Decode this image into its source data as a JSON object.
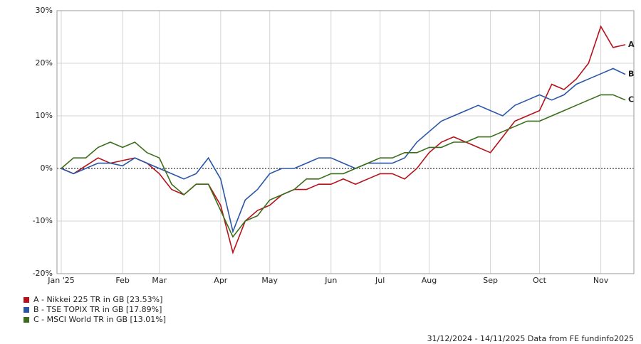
{
  "chart_data": {
    "type": "line",
    "categories": [
      "Jan '25",
      null,
      null,
      null,
      null,
      "Feb",
      null,
      null,
      "Mar",
      null,
      null,
      null,
      null,
      "Apr",
      null,
      null,
      null,
      "May",
      null,
      null,
      null,
      null,
      "Jun",
      null,
      null,
      null,
      "Jul",
      null,
      null,
      null,
      "Aug",
      null,
      null,
      null,
      null,
      "Sep",
      null,
      null,
      null,
      "Oct",
      null,
      null,
      null,
      null,
      "Nov",
      null,
      null
    ],
    "series": [
      {
        "name": "A - Nikkei 225 TR in GB [23.53%]",
        "label": "A",
        "color": "#b5121b",
        "values": [
          0,
          -1,
          0.5,
          2,
          1,
          1.5,
          2,
          1,
          -1,
          -4,
          -5,
          -3,
          -3,
          -7,
          -16,
          -10,
          -8,
          -7,
          -5,
          -4,
          -4,
          -3,
          -3,
          -2,
          -3,
          -2,
          -1,
          -1,
          -2,
          0,
          3,
          5,
          6,
          5,
          4,
          3,
          6,
          9,
          10,
          11,
          16,
          15,
          17,
          20,
          27,
          23,
          23.53
        ]
      },
      {
        "name": "B - TSE TOPIX TR in GB [17.89%]",
        "label": "B",
        "color": "#2a56a6",
        "values": [
          0,
          -1,
          0,
          1,
          1,
          0.5,
          2,
          1,
          0,
          -1,
          -2,
          -1,
          2,
          -2,
          -12,
          -6,
          -4,
          -1,
          0,
          0,
          1,
          2,
          2,
          1,
          0,
          1,
          1,
          1,
          2,
          5,
          7,
          9,
          10,
          11,
          12,
          11,
          10,
          12,
          13,
          14,
          13,
          14,
          16,
          17,
          18,
          19,
          17.89
        ]
      },
      {
        "name": "C - MSCI World TR in GB [13.01%]",
        "label": "C",
        "color": "#3a6e1a",
        "values": [
          0,
          2,
          2,
          4,
          5,
          4,
          5,
          3,
          2,
          -3,
          -5,
          -3,
          -3,
          -8,
          -13,
          -10,
          -9,
          -6,
          -5,
          -4,
          -2,
          -2,
          -1,
          -1,
          0,
          1,
          2,
          2,
          3,
          3,
          4,
          4,
          5,
          5,
          6,
          6,
          7,
          8,
          9,
          9,
          10,
          11,
          12,
          13,
          14,
          14,
          13.01
        ]
      }
    ],
    "ylim": [
      -20,
      30
    ],
    "yticks": [
      {
        "value": -20,
        "label": "-20%"
      },
      {
        "value": -10,
        "label": "-10%"
      },
      {
        "value": 0,
        "label": "0%"
      },
      {
        "value": 10,
        "label": "10%"
      },
      {
        "value": 20,
        "label": "20%"
      },
      {
        "value": 30,
        "label": "30%"
      }
    ],
    "grid": true,
    "footer": "31/12/2024 - 14/11/2025 Data from FE fundinfo2025"
  }
}
